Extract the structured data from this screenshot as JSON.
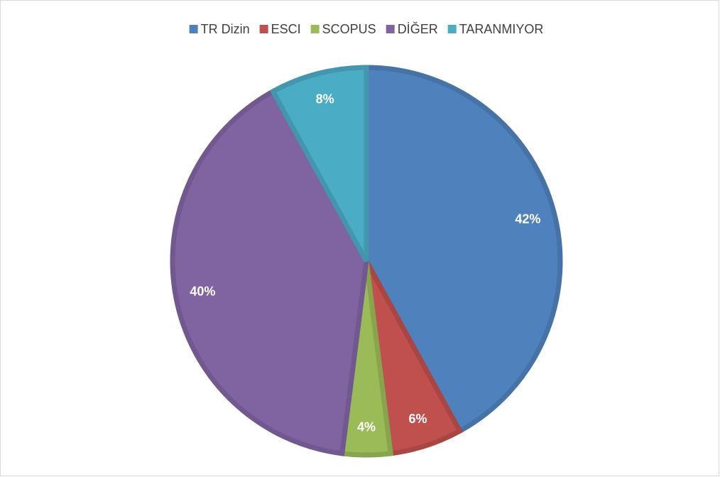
{
  "chart_data": {
    "type": "pie",
    "categories": [
      "TR Dizin",
      "ESCI",
      "SCOPUS",
      "DİĞER",
      "TARANMIYOR"
    ],
    "values": [
      42,
      6,
      4,
      40,
      8
    ],
    "value_labels": [
      "42%",
      "6%",
      "4%",
      "40%",
      "8%"
    ],
    "colors": [
      "#4f81bd",
      "#c0504d",
      "#9bbb59",
      "#8064a2",
      "#4bacc6"
    ],
    "legend": "top"
  }
}
